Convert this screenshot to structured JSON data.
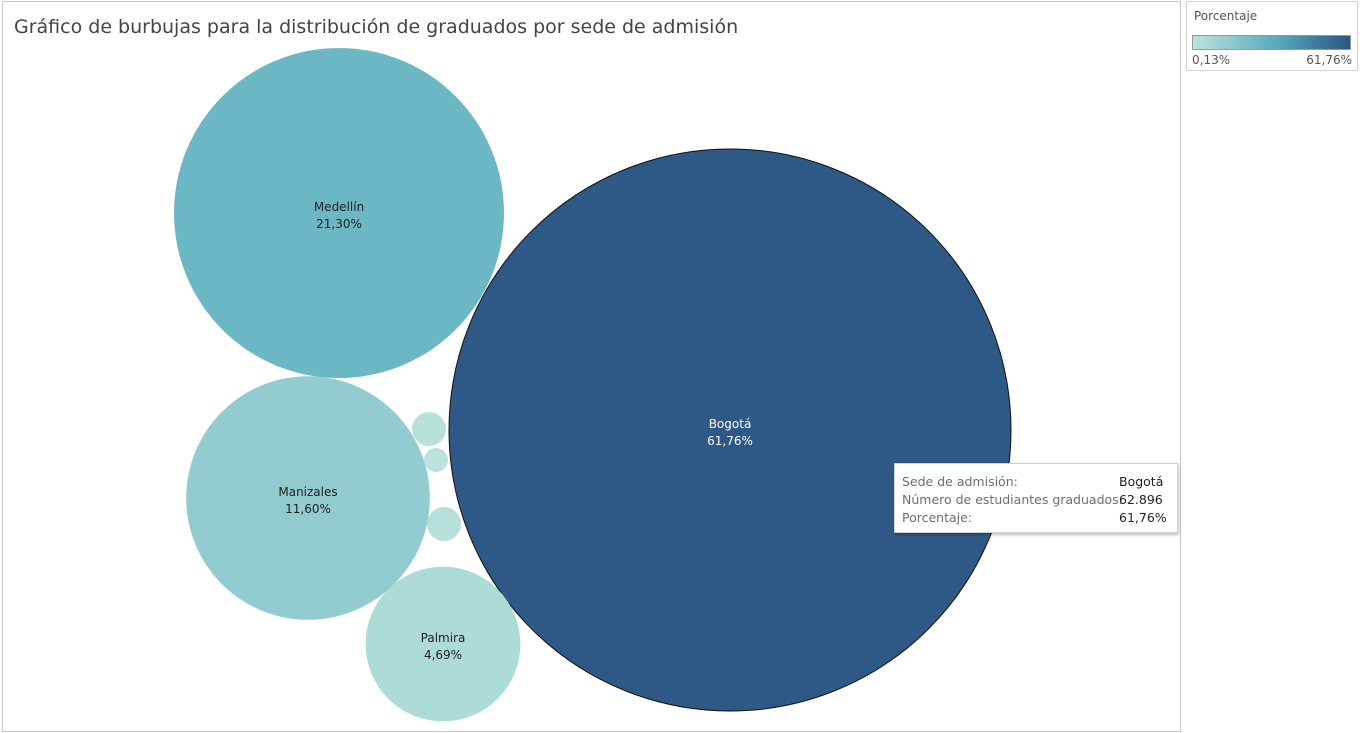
{
  "chart_data": {
    "type": "bubble",
    "title": "Gráfico de burbujas para la distribución de graduados por sede de admisión",
    "size_measure": "Número de estudiantes graduados",
    "color_measure": "Porcentaje",
    "bubbles": [
      {
        "name": "Bogotá",
        "percent_label": "61,76%",
        "percent": 61.76,
        "color": "#2e5986",
        "text_color": "#ffffff",
        "highlighted": true
      },
      {
        "name": "Medellín",
        "percent_label": "21,30%",
        "percent": 21.3,
        "color": "#6cb7c4",
        "text_color": "#222222"
      },
      {
        "name": "Manizales",
        "percent_label": "11,60%",
        "percent": 11.6,
        "color": "#92cbd0",
        "text_color": "#222222"
      },
      {
        "name": "Palmira",
        "percent_label": "4,69%",
        "percent": 4.69,
        "color": "#acdcd5",
        "text_color": "#222222"
      },
      {
        "name": "",
        "percent_label": "",
        "percent": 0.45,
        "color": "#b6e0d9"
      },
      {
        "name": "",
        "percent_label": "",
        "percent": 0.27,
        "color": "#b8e1da"
      },
      {
        "name": "",
        "percent_label": "",
        "percent": 0.13,
        "color": "#bbe3dc"
      }
    ]
  },
  "legend": {
    "title": "Porcentaje",
    "min_label": "0,13%",
    "max_label": "61,76%",
    "color_min": "#bde3dc",
    "color_mid": "#55a7be",
    "color_max": "#2c5581"
  },
  "tooltip": {
    "rows": [
      {
        "label": "Sede de admisión:",
        "value": "Bogotá"
      },
      {
        "label": "Número de estudiantes graduados:",
        "value": "62.896"
      },
      {
        "label": "Porcentaje:",
        "value": "61,76%"
      }
    ]
  }
}
